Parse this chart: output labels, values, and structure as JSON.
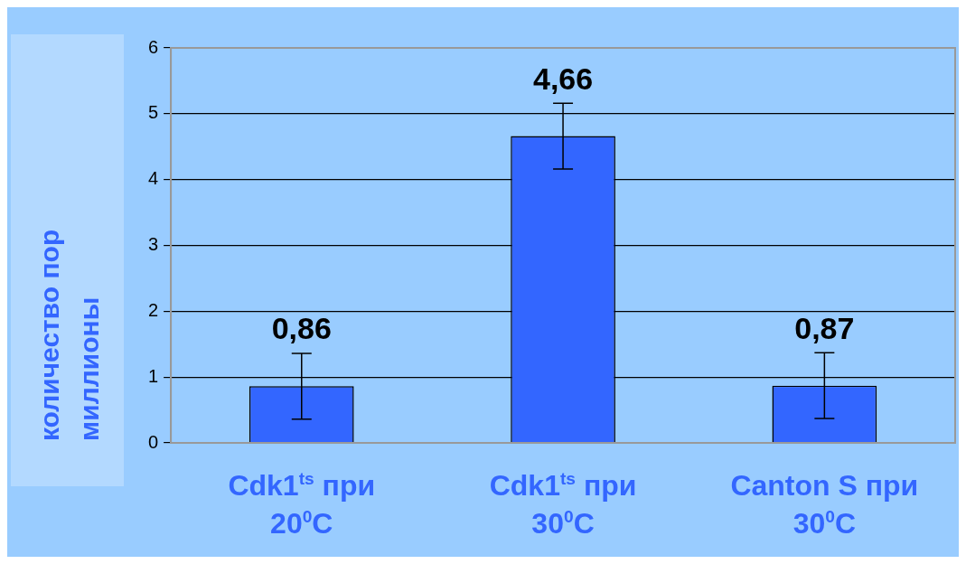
{
  "chart_data": {
    "type": "bar",
    "ylabel": "количество пор миллионы",
    "categories": [
      "Cdk1$^{ts}$ при 20$^{0}$C",
      "Cdk1$^{ts}$ при 30$^{0}$C",
      "Canton S при 30$^{0}$C"
    ],
    "values": [
      0.86,
      4.66,
      0.87
    ],
    "errors": [
      0.5,
      0.5,
      0.5
    ],
    "value_labels": [
      "0,86",
      "4,66",
      "0,87"
    ],
    "color": "#3366ff",
    "ylim": [
      0,
      6
    ],
    "yticks": [
      0,
      1,
      2,
      3,
      4,
      5,
      6
    ],
    "grid": "y",
    "legend": false
  }
}
